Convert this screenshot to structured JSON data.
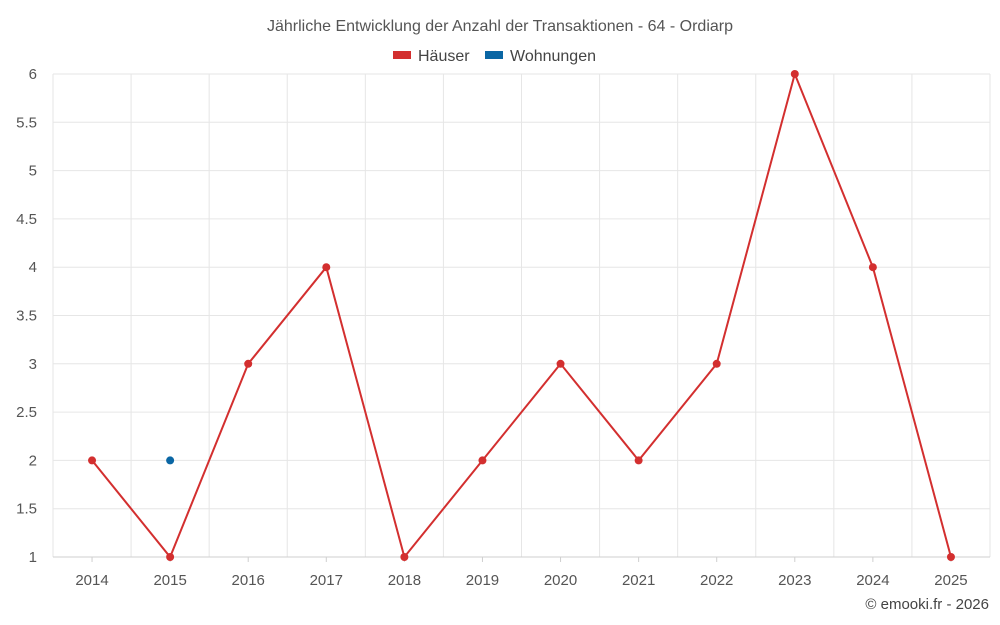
{
  "chart_data": {
    "type": "line",
    "title": "Jährliche Entwicklung der Anzahl der Transaktionen - 64 - Ordiarp",
    "categories": [
      "2014",
      "2015",
      "2016",
      "2017",
      "2018",
      "2019",
      "2020",
      "2021",
      "2022",
      "2023",
      "2024",
      "2025"
    ],
    "y_ticks": [
      "1",
      "1.5",
      "2",
      "2.5",
      "3",
      "3.5",
      "4",
      "4.5",
      "5",
      "5.5",
      "6"
    ],
    "ylim": [
      1,
      6
    ],
    "legend_position": "top-center",
    "series": [
      {
        "name": "Häuser",
        "color": "#d32f2f",
        "values": [
          2,
          1,
          3,
          4,
          1,
          2,
          3,
          2,
          3,
          6,
          4,
          1
        ]
      },
      {
        "name": "Wohnungen",
        "color": "#0a66a4",
        "values": [
          null,
          2,
          null,
          null,
          null,
          null,
          null,
          null,
          null,
          null,
          null,
          null
        ]
      }
    ]
  },
  "credit": "© emooki.fr - 2026"
}
